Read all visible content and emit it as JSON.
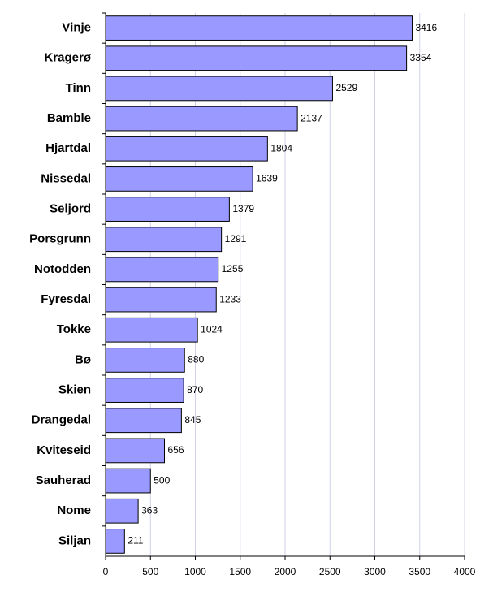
{
  "chart_data": {
    "type": "bar",
    "orientation": "horizontal",
    "categories": [
      "Vinje",
      "Kragerø",
      "Tinn",
      "Bamble",
      "Hjartdal",
      "Nissedal",
      "Seljord",
      "Porsgrunn",
      "Notodden",
      "Fyresdal",
      "Tokke",
      "Bø",
      "Skien",
      "Drangedal",
      "Kviteseid",
      "Sauherad",
      "Nome",
      "Siljan"
    ],
    "values": [
      3416,
      3354,
      2529,
      2137,
      1804,
      1639,
      1379,
      1291,
      1255,
      1233,
      1024,
      880,
      870,
      845,
      656,
      500,
      363,
      211
    ],
    "color": "#9999ff",
    "xlim": [
      0,
      4000
    ],
    "xticks": [
      0,
      500,
      1000,
      1500,
      2000,
      2500,
      3000,
      3500,
      4000
    ],
    "grid": true
  }
}
